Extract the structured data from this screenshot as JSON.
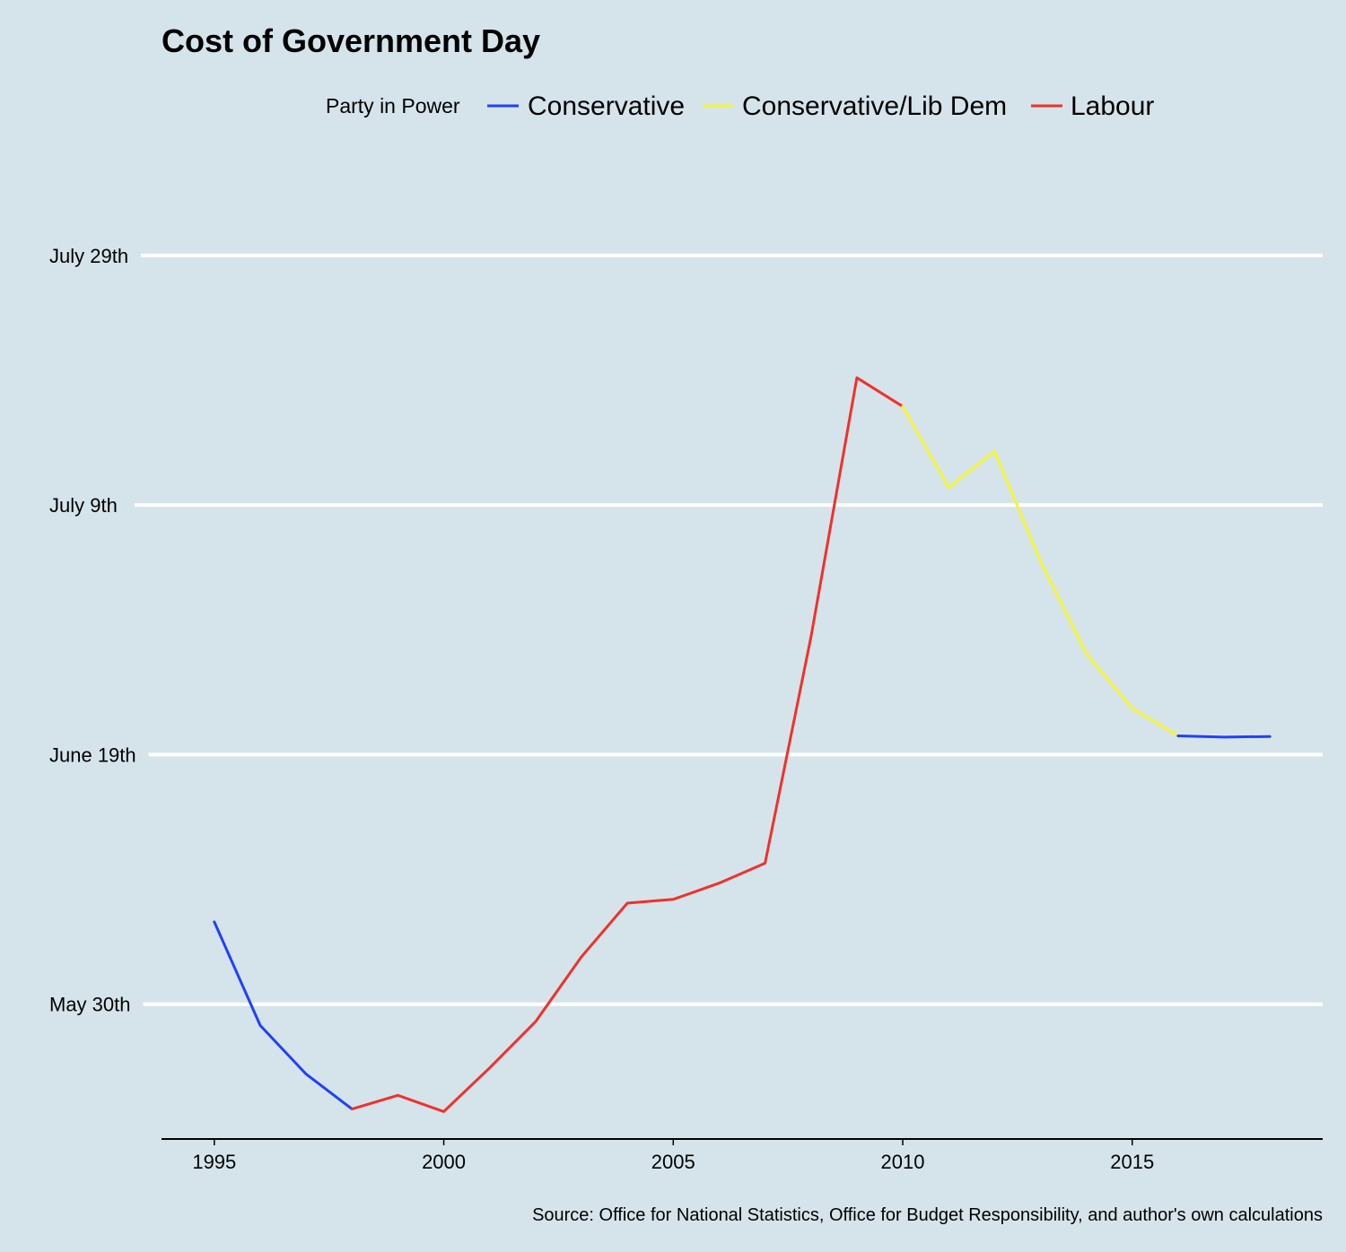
{
  "chart_data": {
    "type": "line",
    "title": "Cost of Government Day",
    "legend": {
      "title": "Party in Power",
      "position": "top",
      "entries": [
        {
          "name": "Conservative",
          "color": "#1f40ff"
        },
        {
          "name": "Conservative/Lib Dem",
          "color": "#f5f535"
        },
        {
          "name": "Labour",
          "color": "#f2302a"
        }
      ]
    },
    "xlabel": "",
    "ylabel": "",
    "xlim": [
      1993.85,
      2019.15
    ],
    "ylim": [
      139.2,
      212.5
    ],
    "x_ticks": [
      1995,
      2000,
      2005,
      2010,
      2015
    ],
    "x_tick_labels": [
      "1995",
      "2000",
      "2005",
      "2010",
      "2015"
    ],
    "y_ticks": [
      150,
      170,
      190,
      210
    ],
    "y_tick_labels": [
      "May 30th",
      "June 19th",
      "July 9th",
      "July 29th"
    ],
    "grid": "horizontal",
    "series": [
      {
        "name": "Conservative",
        "color": "#1f40ff",
        "x": [
          1995,
          1996,
          1997,
          1998
        ],
        "y": [
          156.6,
          148.3,
          144.4,
          141.6
        ]
      },
      {
        "name": "Labour",
        "color": "#f2302a",
        "x": [
          1998,
          1999,
          2000,
          2001,
          2002,
          2003,
          2004,
          2005,
          2006,
          2007,
          2008,
          2009,
          2010
        ],
        "y": [
          141.6,
          142.7,
          141.4,
          144.9,
          148.6,
          153.8,
          158.1,
          158.4,
          159.7,
          161.3,
          179.4,
          200.2,
          197.9
        ]
      },
      {
        "name": "Conservative/Lib Dem",
        "color": "#f5f535",
        "x": [
          2010,
          2011,
          2012,
          2013,
          2014,
          2015,
          2016
        ],
        "y": [
          197.9,
          191.4,
          194.3,
          185.5,
          178.1,
          173.7,
          171.5
        ]
      },
      {
        "name": "Conservative",
        "color": "#1f40ff",
        "x": [
          2016,
          2017,
          2018
        ],
        "y": [
          171.5,
          171.4,
          171.45
        ]
      }
    ],
    "source": "Source: Office for National Statistics, Office for Budget Responsibility, and author's own calculations"
  }
}
